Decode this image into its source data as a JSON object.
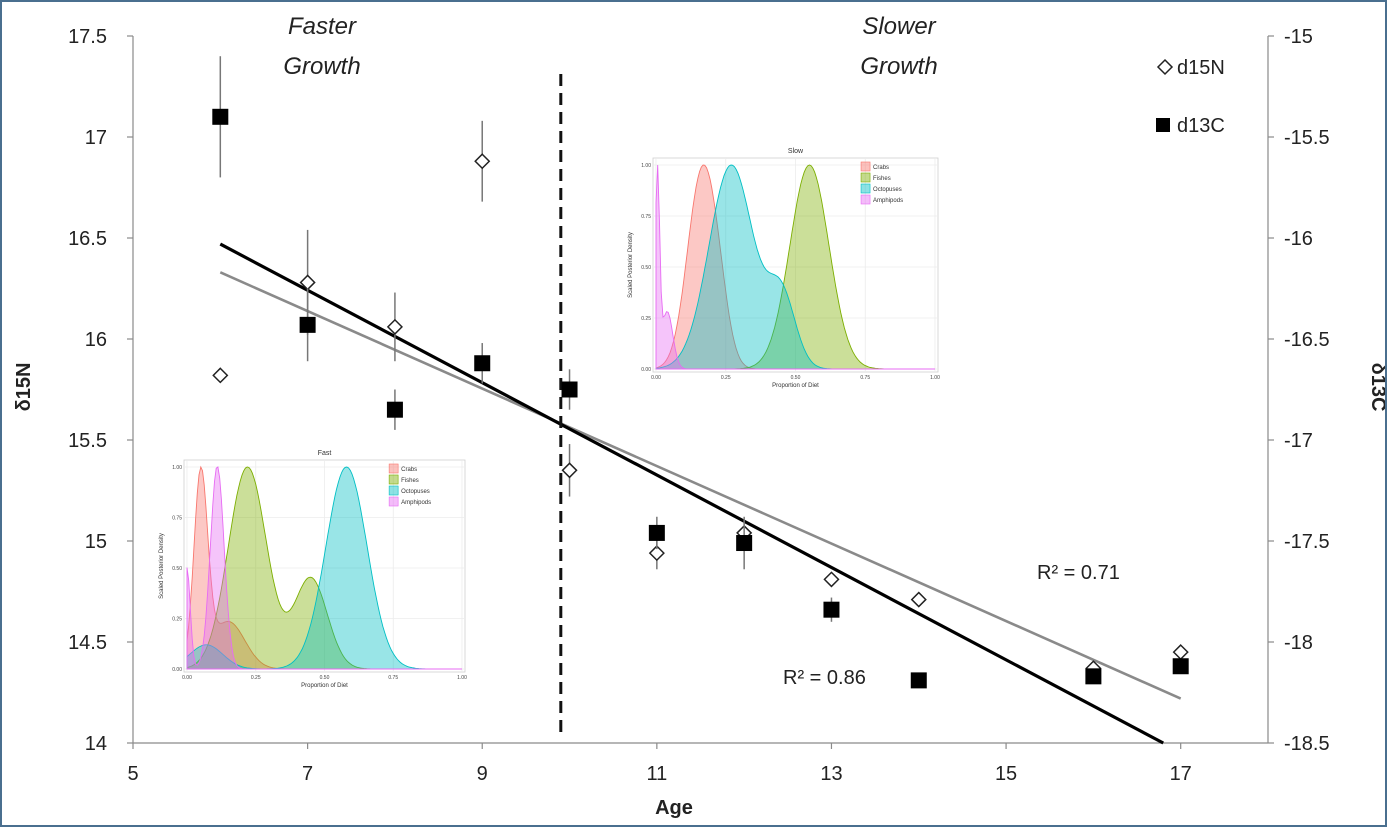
{
  "chart_data": {
    "type": "scatter",
    "title": "",
    "xlabel": "Age",
    "ylabel": "δ15N",
    "y2label": "δ13C",
    "xlim": [
      5,
      18
    ],
    "ylim": [
      14,
      17.5
    ],
    "y2lim": [
      -18.5,
      -15
    ],
    "xticks": [
      "5",
      "7",
      "9",
      "11",
      "13",
      "15",
      "17"
    ],
    "yticks": [
      "14",
      "14.5",
      "15",
      "15.5",
      "16",
      "16.5",
      "17",
      "17.5"
    ],
    "y2ticks": [
      "-18.5",
      "-18",
      "-17.5",
      "-17",
      "-16.5",
      "-16",
      "-15.5",
      "-15"
    ],
    "annotations": {
      "faster_line1": "Faster",
      "faster_line2": "Growth",
      "slower_line1": "Slower",
      "slower_line2": "Growth",
      "r2_n": "R² = 0.71",
      "r2_c": "R² = 0.86"
    },
    "threshold_x": 9.9,
    "series": [
      {
        "name": "d15N",
        "marker": "diamond-open",
        "color": "#222222",
        "axis": "left",
        "points": [
          {
            "x": 6,
            "y": 15.82
          },
          {
            "x": 7,
            "y": 16.28,
            "err": 0.26
          },
          {
            "x": 8,
            "y": 16.06,
            "err": 0.17
          },
          {
            "x": 9,
            "y": 16.88,
            "err": 0.2
          },
          {
            "x": 10,
            "y": 15.35,
            "err": 0.13
          },
          {
            "x": 11,
            "y": 14.94,
            "err": 0.08
          },
          {
            "x": 12,
            "y": 15.04
          },
          {
            "x": 13,
            "y": 14.81
          },
          {
            "x": 14,
            "y": 14.71
          },
          {
            "x": 16,
            "y": 14.37
          },
          {
            "x": 17,
            "y": 14.45
          }
        ],
        "trend": {
          "x": [
            6,
            17
          ],
          "y": [
            16.33,
            14.22
          ],
          "color": "#8a8a8a",
          "r2": 0.71
        }
      },
      {
        "name": "d13C",
        "marker": "square-filled",
        "color": "#000000",
        "axis": "right",
        "points": [
          {
            "x": 6,
            "y": -15.4,
            "err": 0.3
          },
          {
            "x": 7,
            "y": -16.43,
            "err": 0.18
          },
          {
            "x": 8,
            "y": -16.85,
            "err": 0.1
          },
          {
            "x": 9,
            "y": -16.62,
            "err": 0.1
          },
          {
            "x": 10,
            "y": -16.75,
            "err": 0.1
          },
          {
            "x": 11,
            "y": -17.46,
            "err": 0.08
          },
          {
            "x": 12,
            "y": -17.51,
            "err": 0.13
          },
          {
            "x": 13,
            "y": -17.84,
            "err": 0.06
          },
          {
            "x": 14,
            "y": -18.19
          },
          {
            "x": 16,
            "y": -18.17
          },
          {
            "x": 17,
            "y": -18.12
          }
        ],
        "trend": {
          "x": [
            6,
            16.8
          ],
          "y": [
            -16.03,
            -18.5
          ],
          "color": "#000000",
          "r2": 0.86
        }
      }
    ],
    "insets": [
      {
        "title": "Fast",
        "xlabel": "Proportion of Diet",
        "ylabel": "Scaled Posterior Density",
        "xticks": [
          "0.00",
          "0.25",
          "0.50",
          "0.75",
          "1.00"
        ],
        "yticks": [
          "0.00",
          "0.25",
          "0.50",
          "0.75",
          "1.00"
        ],
        "legend": [
          "Crabs",
          "Fishes",
          "Octopuses",
          "Amphipods"
        ],
        "densities": [
          {
            "name": "Crabs",
            "color": "#f8766d",
            "peaks": [
              {
                "mu": 0.05,
                "sd": 0.025,
                "a": 1.0
              },
              {
                "mu": 0.15,
                "sd": 0.06,
                "a": 0.25
              }
            ]
          },
          {
            "name": "Fishes",
            "color": "#7cae00",
            "peaks": [
              {
                "mu": 0.22,
                "sd": 0.07,
                "a": 1.0
              },
              {
                "mu": 0.45,
                "sd": 0.06,
                "a": 0.45
              }
            ]
          },
          {
            "name": "Octopuses",
            "color": "#00bfc4",
            "peaks": [
              {
                "mu": 0.58,
                "sd": 0.075,
                "a": 1.0
              },
              {
                "mu": 0.07,
                "sd": 0.06,
                "a": 0.12
              }
            ]
          },
          {
            "name": "Amphipods",
            "color": "#e76bf3",
            "peaks": [
              {
                "mu": 0.11,
                "sd": 0.025,
                "a": 1.0
              },
              {
                "mu": 0.0,
                "sd": 0.012,
                "a": 0.5
              }
            ]
          }
        ]
      },
      {
        "title": "Slow",
        "xlabel": "Proportion of Diet",
        "ylabel": "Scaled Posterior Density",
        "xticks": [
          "0.00",
          "0.25",
          "0.50",
          "0.75",
          "1.00"
        ],
        "yticks": [
          "0.00",
          "0.25",
          "0.50",
          "0.75",
          "1.00"
        ],
        "legend": [
          "Crabs",
          "Fishes",
          "Octopuses",
          "Amphipods"
        ],
        "densities": [
          {
            "name": "Crabs",
            "color": "#f8766d",
            "peaks": [
              {
                "mu": 0.16,
                "sd": 0.05,
                "a": 1.0
              },
              {
                "mu": 0.22,
                "sd": 0.04,
                "a": 0.3
              }
            ]
          },
          {
            "name": "Fishes",
            "color": "#7cae00",
            "peaks": [
              {
                "mu": 0.55,
                "sd": 0.07,
                "a": 1.0
              }
            ]
          },
          {
            "name": "Octopuses",
            "color": "#00bfc4",
            "peaks": [
              {
                "mu": 0.27,
                "sd": 0.08,
                "a": 1.0
              },
              {
                "mu": 0.45,
                "sd": 0.05,
                "a": 0.35
              }
            ]
          },
          {
            "name": "Amphipods",
            "color": "#e76bf3",
            "peaks": [
              {
                "mu": 0.005,
                "sd": 0.008,
                "a": 1.0
              },
              {
                "mu": 0.04,
                "sd": 0.02,
                "a": 0.3
              }
            ]
          }
        ]
      }
    ]
  }
}
